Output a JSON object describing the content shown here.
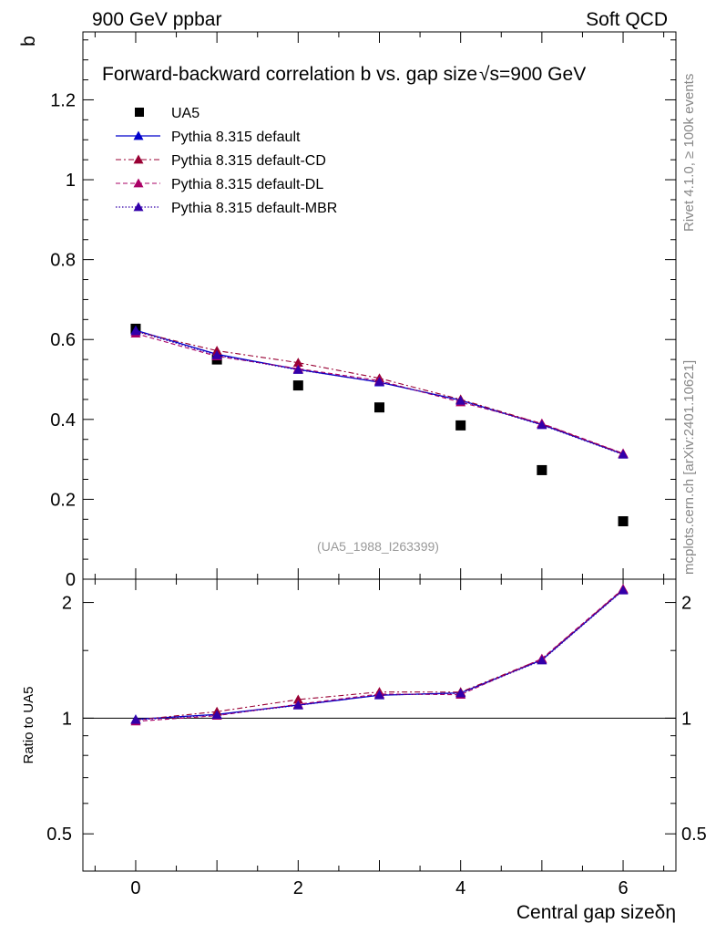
{
  "header": {
    "left": "900 GeV ppbar",
    "right": "Soft QCD"
  },
  "side_text": {
    "rivet": "Rivet 4.1.0, ≥ 100k events",
    "mcplots": "mcplots.cern.ch [arXiv:2401.10621]"
  },
  "reference": "(UA5_1988_I263399)",
  "colors": {
    "data": "#000000",
    "default": "#0000cc",
    "cd": "#990033",
    "dl": "#aa0066",
    "mbr": "#3300aa"
  },
  "chart_data": [
    {
      "type": "line",
      "panel": "main",
      "title": "Forward-backward correlation b  vs. gap size",
      "title_suffix": "√s=900 GeV",
      "ylabel": "b",
      "xlim": [
        -0.65,
        6.65
      ],
      "ylim": [
        0,
        1.37
      ],
      "yticks": [
        0,
        0.2,
        0.4,
        0.6,
        0.8,
        1,
        1.2
      ],
      "ytick_labels": [
        "0",
        "0.2",
        "0.4",
        "0.6",
        "0.8",
        "1",
        "1.2"
      ],
      "x": [
        0,
        1,
        2,
        3,
        4,
        5,
        6
      ],
      "series": [
        {
          "name": "UA5",
          "kind": "data",
          "values": [
            0.627,
            0.55,
            0.485,
            0.43,
            0.385,
            0.273,
            0.145
          ]
        },
        {
          "name": "Pythia 8.315 default",
          "kind": "default",
          "values": [
            0.623,
            0.563,
            0.525,
            0.493,
            0.448,
            0.387,
            0.313
          ]
        },
        {
          "name": "Pythia 8.315 default-CD",
          "kind": "cd",
          "values": [
            0.62,
            0.572,
            0.542,
            0.503,
            0.45,
            0.389,
            0.314
          ]
        },
        {
          "name": "Pythia 8.315 default-DL",
          "kind": "dl",
          "values": [
            0.615,
            0.558,
            0.527,
            0.497,
            0.443,
            0.39,
            0.315
          ]
        },
        {
          "name": "Pythia 8.315 default-MBR",
          "kind": "mbr",
          "values": [
            0.621,
            0.561,
            0.524,
            0.494,
            0.447,
            0.386,
            0.312
          ]
        }
      ]
    },
    {
      "type": "line",
      "panel": "ratio",
      "ylabel": "Ratio to UA5",
      "xlabel": "Central gap size",
      "xlabel_suffix": "δη",
      "xlim": [
        -0.65,
        6.65
      ],
      "ylim": [
        0.4,
        2.3
      ],
      "xticks": [
        0,
        2,
        4,
        6
      ],
      "xtick_labels": [
        "0",
        "2",
        "4",
        "6"
      ],
      "yticks": [
        0.5,
        1,
        2
      ],
      "ytick_labels": [
        "0.5",
        "1",
        "2"
      ],
      "x": [
        0,
        1,
        2,
        3,
        4,
        5,
        6
      ],
      "series": [
        {
          "name": "Pythia 8.315 default",
          "kind": "default",
          "values": [
            0.993,
            1.023,
            1.082,
            1.147,
            1.164,
            1.418,
            2.159
          ]
        },
        {
          "name": "Pythia 8.315 default-CD",
          "kind": "cd",
          "values": [
            0.989,
            1.04,
            1.118,
            1.17,
            1.169,
            1.425,
            2.166
          ]
        },
        {
          "name": "Pythia 8.315 default-DL",
          "kind": "dl",
          "values": [
            0.981,
            1.015,
            1.087,
            1.156,
            1.151,
            1.429,
            2.172
          ]
        },
        {
          "name": "Pythia 8.315 default-MBR",
          "kind": "mbr",
          "values": [
            0.99,
            1.02,
            1.08,
            1.149,
            1.161,
            1.414,
            2.152
          ]
        }
      ]
    }
  ]
}
